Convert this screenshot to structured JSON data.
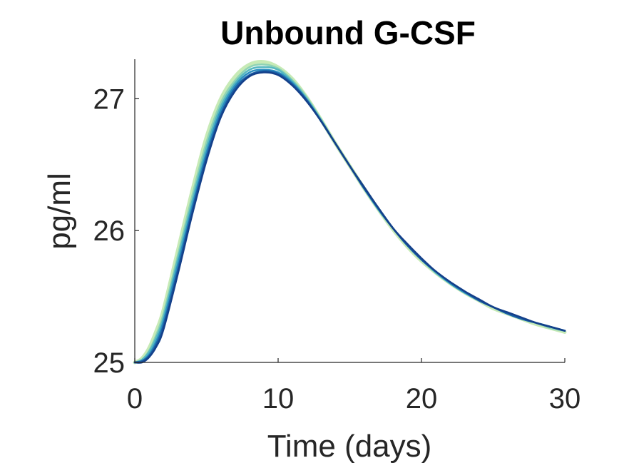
{
  "chart_data": {
    "type": "line",
    "title": "Unbound G-CSF",
    "xlabel": "Time (days)",
    "ylabel": "pg/ml",
    "xlim": [
      0,
      30
    ],
    "ylim": [
      25,
      27.3
    ],
    "xticks": [
      0,
      10,
      20,
      30
    ],
    "yticks": [
      25,
      26,
      27
    ],
    "xtick_labels": [
      "0",
      "10",
      "20",
      "30"
    ],
    "ytick_labels": [
      "25",
      "26",
      "27"
    ],
    "grid": false,
    "legend": "none",
    "colormap": [
      "#c7eab6",
      "#8fd3b4",
      "#56b8c0",
      "#2b8fc0",
      "#1a5fa6",
      "#14408a"
    ],
    "x": [
      0,
      0.5,
      1,
      1.5,
      2,
      3,
      4,
      5,
      6,
      7,
      8,
      9,
      10,
      11,
      12,
      13,
      14,
      15,
      16,
      17,
      18,
      19,
      20,
      21,
      22,
      23,
      24,
      25,
      26,
      27,
      28,
      29,
      30
    ],
    "series": [
      {
        "values": [
          25.0,
          25.03,
          25.11,
          25.24,
          25.4,
          25.85,
          26.3,
          26.71,
          27.0,
          27.17,
          27.26,
          27.28,
          27.24,
          27.15,
          27.01,
          26.84,
          26.66,
          26.49,
          26.32,
          26.16,
          26.01,
          25.88,
          25.77,
          25.68,
          25.6,
          25.53,
          25.47,
          25.41,
          25.37,
          25.33,
          25.29,
          25.26,
          25.23
        ]
      },
      {
        "values": [
          25.0,
          25.02,
          25.09,
          25.21,
          25.37,
          25.81,
          26.26,
          26.67,
          26.97,
          27.14,
          27.24,
          27.26,
          27.23,
          27.14,
          27.01,
          26.84,
          26.66,
          26.49,
          26.32,
          26.16,
          26.02,
          25.89,
          25.78,
          25.68,
          25.6,
          25.53,
          25.47,
          25.42,
          25.37,
          25.33,
          25.3,
          25.26,
          25.24
        ]
      },
      {
        "values": [
          25.0,
          25.02,
          25.08,
          25.19,
          25.34,
          25.78,
          26.22,
          26.63,
          26.94,
          27.12,
          27.22,
          27.24,
          27.22,
          27.13,
          27.0,
          26.84,
          26.66,
          26.49,
          26.32,
          26.16,
          26.02,
          25.89,
          25.78,
          25.68,
          25.6,
          25.53,
          25.47,
          25.42,
          25.37,
          25.33,
          25.3,
          25.27,
          25.24
        ]
      },
      {
        "values": [
          25.0,
          25.01,
          25.06,
          25.16,
          25.31,
          25.74,
          26.18,
          26.59,
          26.91,
          27.1,
          27.2,
          27.22,
          27.2,
          27.12,
          26.99,
          26.83,
          26.66,
          26.49,
          26.32,
          26.16,
          26.02,
          25.89,
          25.78,
          25.69,
          25.6,
          25.53,
          25.47,
          25.42,
          25.37,
          25.33,
          25.3,
          25.27,
          25.24
        ]
      },
      {
        "values": [
          25.0,
          25.01,
          25.05,
          25.14,
          25.28,
          25.7,
          26.15,
          26.56,
          26.88,
          27.08,
          27.18,
          27.21,
          27.19,
          27.11,
          26.99,
          26.83,
          26.66,
          26.49,
          26.32,
          26.17,
          26.02,
          25.89,
          25.78,
          25.69,
          25.61,
          25.54,
          25.47,
          25.42,
          25.37,
          25.33,
          25.3,
          25.27,
          25.24
        ]
      },
      {
        "values": [
          25.0,
          25.0,
          25.04,
          25.12,
          25.25,
          25.67,
          26.12,
          26.53,
          26.86,
          27.06,
          27.17,
          27.2,
          27.18,
          27.1,
          26.98,
          26.83,
          26.66,
          26.49,
          26.33,
          26.17,
          26.02,
          25.9,
          25.79,
          25.69,
          25.61,
          25.54,
          25.48,
          25.42,
          25.38,
          25.34,
          25.3,
          25.27,
          25.24
        ]
      }
    ]
  }
}
